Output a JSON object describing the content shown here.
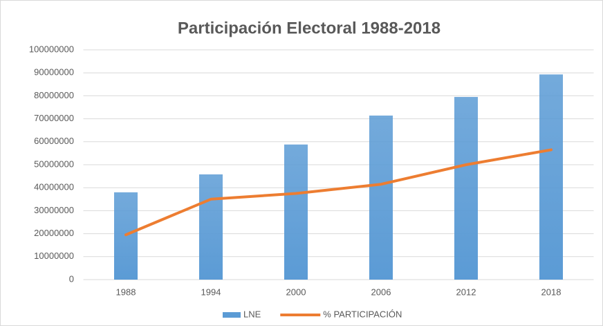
{
  "chart_data": {
    "type": "bar",
    "title": "Participación Electoral 1988-2018",
    "categories": [
      "1988",
      "1994",
      "2000",
      "2006",
      "2012",
      "2018"
    ],
    "series": [
      {
        "name": "LNE",
        "type": "bar",
        "color": "#5b9bd5",
        "values": [
          38000000,
          45800000,
          58800000,
          71400000,
          79500000,
          89300000
        ]
      },
      {
        "name": "% PARTICIPACIÓN",
        "type": "line",
        "color": "#ed7d31",
        "values": [
          19500000,
          35000000,
          37500000,
          41500000,
          50000000,
          56500000
        ]
      }
    ],
    "ylim": [
      0,
      100000000
    ],
    "yticks": [
      0,
      10000000,
      20000000,
      30000000,
      40000000,
      50000000,
      60000000,
      70000000,
      80000000,
      90000000,
      100000000
    ],
    "grid": true,
    "legend": "bottom"
  }
}
